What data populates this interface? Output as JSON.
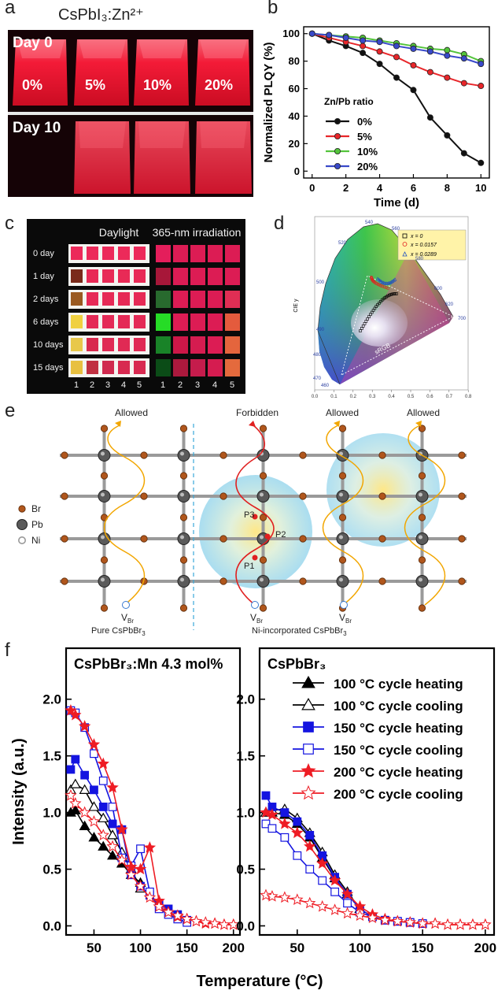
{
  "panels": {
    "a": {
      "letter": "a",
      "title": "CsPbI₃:Zn²⁺",
      "day0": "Day 0",
      "day10": "Day 10",
      "ratios": [
        "0%",
        "5%",
        "10%",
        "20%"
      ],
      "colors": {
        "glow": "#ff1e3c",
        "bg": "#140306"
      }
    },
    "b": {
      "letter": "b"
    },
    "c": {
      "letter": "c",
      "col_daylight": "Daylight",
      "col_uv": "365-nm irradiation",
      "rows": [
        "0 day",
        "1 day",
        "2 days",
        "6 days",
        "10 days",
        "15 days"
      ],
      "samples": [
        "1",
        "2",
        "3",
        "4",
        "5"
      ]
    },
    "d": {
      "letter": "d",
      "ylabel": "CIE y",
      "legend": [
        "x = 0",
        "x = 0.0157",
        "x = 0.0289"
      ],
      "wavelengths": [
        "460",
        "470",
        "480",
        "490",
        "500",
        "520",
        "540",
        "560",
        "580",
        "600",
        "620",
        "700"
      ],
      "srgb": "sRGB",
      "axis_ticks": [
        "0.0",
        "0.1",
        "0.2",
        "0.3",
        "0.4",
        "0.5",
        "0.6",
        "0.7",
        "0.8"
      ]
    },
    "e": {
      "letter": "e",
      "allowed_left": "Allowed",
      "forbidden": "Forbidden",
      "allowed_mid": "Allowed",
      "allowed_right": "Allowed",
      "legend": [
        "Br",
        "Pb",
        "Ni"
      ],
      "points": [
        "P3",
        "P2",
        "P1"
      ],
      "vacancy": "V",
      "vacancy_sub": "Br",
      "caption_left": "Pure CsPbBr",
      "caption_right": "Ni-incorporated CsPbBr",
      "sub3": "3"
    },
    "f": {
      "letter": "f",
      "xlabel": "Temperature (°C)",
      "ylabel": "Intensity (a.u.)"
    }
  },
  "chart_data": [
    {
      "id": "b",
      "type": "line",
      "xlabel": "Time (d)",
      "ylabel": "Normalized PLQY (%)",
      "xlim": [
        -0.5,
        10.5
      ],
      "ylim": [
        -5,
        105
      ],
      "xticks": [
        0,
        2,
        4,
        6,
        8,
        10
      ],
      "yticks": [
        0,
        20,
        40,
        60,
        80,
        100
      ],
      "legend_title": "Zn/Pb ratio",
      "legend_position": "center-left",
      "x": [
        0,
        1,
        2,
        3,
        4,
        5,
        6,
        7,
        8,
        9,
        10
      ],
      "series": [
        {
          "name": "0%",
          "color": "#111111",
          "values": [
            100,
            95,
            91,
            86,
            78,
            68,
            59,
            39,
            26,
            13,
            6
          ]
        },
        {
          "name": "5%",
          "color": "#e8262a",
          "values": [
            100,
            97,
            94,
            91,
            87,
            83,
            77,
            72,
            68,
            64,
            62
          ]
        },
        {
          "name": "10%",
          "color": "#54c43c",
          "values": [
            100,
            99,
            98,
            97,
            95,
            93,
            91,
            89,
            88,
            85,
            80
          ]
        },
        {
          "name": "20%",
          "color": "#3949c9",
          "values": [
            100,
            99,
            97,
            95,
            94,
            91,
            89,
            87,
            84,
            82,
            78
          ]
        }
      ]
    },
    {
      "id": "f-left",
      "type": "line",
      "title": "CsPbBr₃:Mn 4.3 mol%",
      "xlim": [
        20,
        207
      ],
      "ylim": [
        -0.08,
        2.45
      ],
      "xticks": [
        50,
        100,
        150,
        200
      ],
      "yticks": [
        0.0,
        0.5,
        1.0,
        1.5,
        2.0
      ],
      "series": [
        {
          "name": "100 °C cycle heating",
          "color": "#000000",
          "marker": "triangle",
          "filled": true,
          "x": [
            25,
            30,
            40,
            50,
            60,
            70,
            80,
            90,
            100
          ],
          "y": [
            1.0,
            1.02,
            0.88,
            0.78,
            0.7,
            0.62,
            0.55,
            0.45,
            0.38
          ]
        },
        {
          "name": "100 °C cycle cooling",
          "color": "#000000",
          "marker": "triangle",
          "filled": false,
          "x": [
            25,
            30,
            40,
            50,
            60,
            70,
            80,
            90,
            100
          ],
          "y": [
            1.2,
            1.25,
            1.2,
            1.05,
            0.95,
            0.8,
            0.65,
            0.5,
            0.33
          ]
        },
        {
          "name": "150 °C cycle heating",
          "color": "#1414e0",
          "marker": "square",
          "filled": true,
          "x": [
            25,
            30,
            40,
            50,
            60,
            70,
            80,
            90,
            100,
            110,
            120,
            130,
            140,
            150
          ],
          "y": [
            1.38,
            1.47,
            1.33,
            1.2,
            1.05,
            0.9,
            0.85,
            0.45,
            0.35,
            0.27,
            0.2,
            0.15,
            0.1,
            0.05
          ]
        },
        {
          "name": "150 °C cycle cooling",
          "color": "#1414e0",
          "marker": "square",
          "filled": false,
          "x": [
            25,
            30,
            40,
            50,
            60,
            70,
            80,
            90,
            100,
            110,
            120,
            130,
            140,
            150
          ],
          "y": [
            1.9,
            1.88,
            1.75,
            1.52,
            1.28,
            1.05,
            0.6,
            0.53,
            0.68,
            0.3,
            0.15,
            0.1,
            0.06,
            0.03
          ]
        },
        {
          "name": "200 °C cycle heating",
          "color": "#ee1c24",
          "marker": "star",
          "filled": true,
          "x": [
            25,
            30,
            40,
            50,
            60,
            70,
            80,
            90,
            100,
            110,
            120,
            130,
            140,
            150,
            160,
            170,
            180,
            190,
            200
          ],
          "y": [
            1.9,
            1.86,
            1.76,
            1.6,
            1.43,
            1.22,
            0.85,
            0.52,
            0.5,
            0.69,
            0.22,
            0.12,
            0.08,
            0.06,
            0.04,
            0.02,
            0.02,
            0.01,
            0.01
          ]
        },
        {
          "name": "200 °C cycle cooling",
          "color": "#ee1c24",
          "marker": "star",
          "filled": false,
          "x": [
            25,
            30,
            40,
            50,
            60,
            70,
            80,
            90,
            100,
            110,
            120,
            130,
            140,
            150,
            160,
            170,
            180,
            190,
            200
          ],
          "y": [
            1.15,
            1.08,
            1.0,
            0.92,
            0.8,
            0.7,
            0.58,
            0.45,
            0.35,
            0.25,
            0.17,
            0.12,
            0.09,
            0.06,
            0.04,
            0.03,
            0.02,
            0.01,
            0.01
          ]
        }
      ]
    },
    {
      "id": "f-right",
      "type": "line",
      "title": "CsPbBr₃",
      "xlim": [
        20,
        207
      ],
      "ylim": [
        -0.08,
        2.45
      ],
      "xticks": [
        50,
        100,
        150,
        200
      ],
      "yticks": [
        0.0,
        0.5,
        1.0,
        1.5,
        2.0
      ],
      "legend_position": "top-right",
      "series": [
        {
          "name": "100 °C cycle heating",
          "color": "#000000",
          "marker": "triangle",
          "filled": true,
          "x": [
            25,
            30,
            40,
            50,
            60,
            70,
            80,
            90,
            100
          ],
          "y": [
            1.0,
            1.0,
            0.98,
            0.9,
            0.78,
            0.6,
            0.42,
            0.28,
            0.15
          ]
        },
        {
          "name": "100 °C cycle cooling",
          "color": "#000000",
          "marker": "triangle",
          "filled": false,
          "x": [
            25,
            30,
            40,
            50,
            60,
            70,
            80,
            90,
            100
          ],
          "y": [
            1.0,
            1.02,
            1.03,
            0.95,
            0.82,
            0.65,
            0.45,
            0.3,
            0.15
          ]
        },
        {
          "name": "150 °C cycle heating",
          "color": "#1414e0",
          "marker": "square",
          "filled": true,
          "x": [
            25,
            30,
            40,
            50,
            60,
            70,
            80,
            90,
            100,
            110,
            120,
            130,
            140,
            150
          ],
          "y": [
            1.15,
            1.05,
            1.0,
            0.92,
            0.8,
            0.62,
            0.43,
            0.28,
            0.15,
            0.08,
            0.05,
            0.04,
            0.03,
            0.02
          ]
        },
        {
          "name": "150 °C cycle cooling",
          "color": "#1414e0",
          "marker": "square",
          "filled": false,
          "x": [
            25,
            30,
            40,
            50,
            60,
            70,
            80,
            90,
            100,
            110,
            120,
            130,
            140,
            150
          ],
          "y": [
            0.9,
            0.86,
            0.78,
            0.62,
            0.5,
            0.4,
            0.3,
            0.2,
            0.12,
            0.08,
            0.05,
            0.04,
            0.03,
            0.02
          ]
        },
        {
          "name": "200 °C cycle heating",
          "color": "#ee1c24",
          "marker": "star",
          "filled": true,
          "x": [
            25,
            30,
            40,
            50,
            60,
            70,
            80,
            90,
            100,
            110,
            120,
            130,
            140,
            150,
            160,
            170,
            180,
            190,
            200
          ],
          "y": [
            1.0,
            0.98,
            0.9,
            0.82,
            0.7,
            0.55,
            0.4,
            0.28,
            0.17,
            0.1,
            0.06,
            0.04,
            0.03,
            0.02,
            0.02,
            0.01,
            0.01,
            0.01,
            0.01
          ]
        },
        {
          "name": "200 °C cycle cooling",
          "color": "#ee1c24",
          "marker": "star",
          "filled": false,
          "x": [
            25,
            30,
            40,
            50,
            60,
            70,
            80,
            90,
            100,
            110,
            120,
            130,
            140,
            150,
            160,
            170,
            180,
            190,
            200
          ],
          "y": [
            0.27,
            0.26,
            0.25,
            0.23,
            0.2,
            0.17,
            0.14,
            0.11,
            0.09,
            0.07,
            0.05,
            0.04,
            0.03,
            0.02,
            0.02,
            0.01,
            0.01,
            0.01,
            0.01
          ]
        }
      ]
    }
  ]
}
